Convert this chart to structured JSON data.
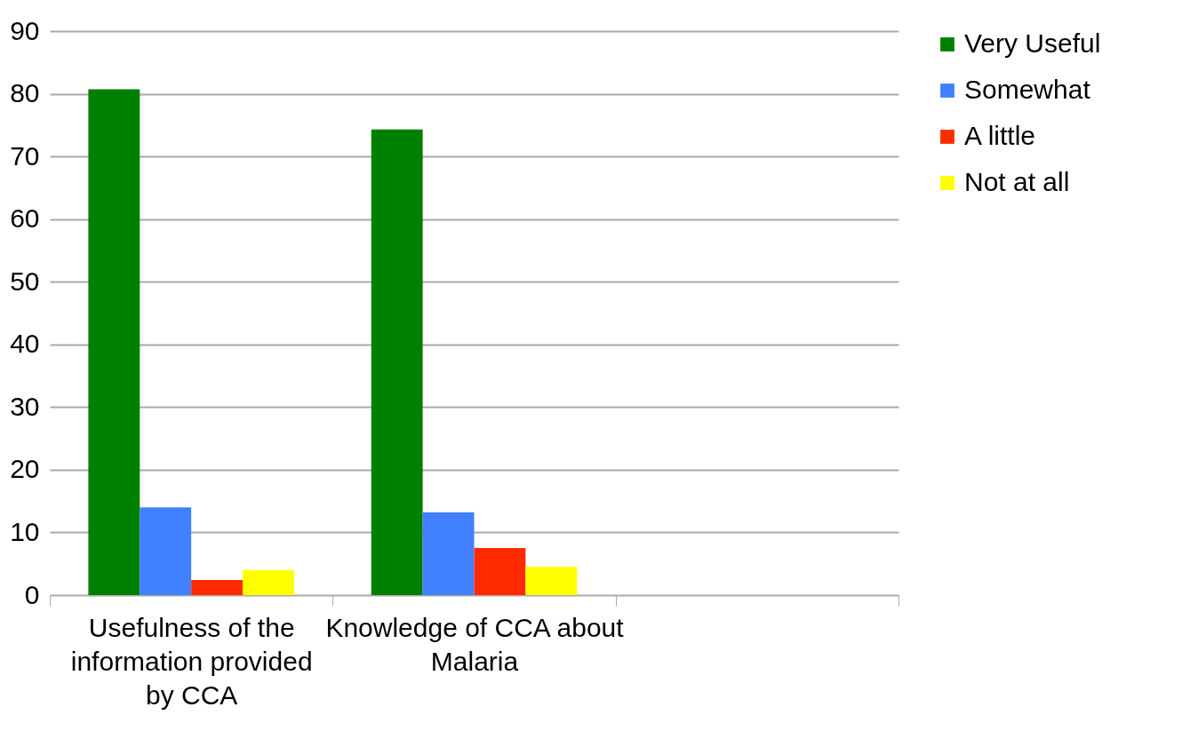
{
  "chart_data": {
    "type": "bar",
    "categories": [
      "Usefulness of the information provided by CCA",
      "Knowledge of CCA about Malaria",
      null
    ],
    "series": [
      {
        "name": "Very Useful",
        "color": "#008000",
        "values": [
          80.7,
          74.3,
          null
        ]
      },
      {
        "name": "Somewhat",
        "color": "#4080ff",
        "values": [
          14.0,
          13.2,
          null
        ]
      },
      {
        "name": "A little",
        "color": "#ff2a00",
        "values": [
          2.4,
          7.5,
          null
        ]
      },
      {
        "name": "Not at all",
        "color": "#ffff00",
        "values": [
          4.0,
          4.5,
          null
        ]
      }
    ],
    "ylim": [
      0,
      90
    ],
    "yticks": [
      0,
      10,
      20,
      30,
      40,
      50,
      60,
      70,
      80,
      90
    ],
    "grid": "y",
    "legend": "right"
  }
}
